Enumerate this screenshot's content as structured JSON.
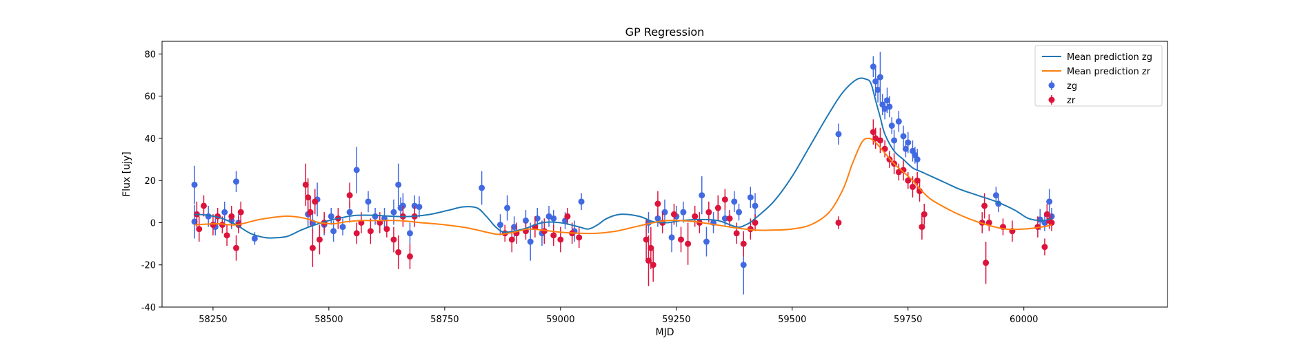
{
  "chart_data": {
    "type": "scatter",
    "title": "GP Regression",
    "xlabel": "MJD",
    "ylabel": "Flux [ujy]",
    "xlim": [
      58140,
      60310
    ],
    "ylim": [
      -40,
      86
    ],
    "xticks": [
      58250,
      58500,
      58750,
      59000,
      59250,
      59500,
      59750,
      60000
    ],
    "yticks": [
      -40,
      -20,
      0,
      20,
      40,
      60,
      80
    ],
    "grid": false,
    "legend_position": "top-right",
    "legend": [
      {
        "label": "Mean prediction zg",
        "kind": "line",
        "color": "#1f77b4"
      },
      {
        "label": "Mean prediction zr",
        "kind": "line",
        "color": "#ff7f0e"
      },
      {
        "label": "zg",
        "kind": "errorbar",
        "color": "#4169e1"
      },
      {
        "label": "zr",
        "kind": "errorbar",
        "color": "#dc143c"
      }
    ],
    "series": [
      {
        "name": "Mean prediction zg",
        "kind": "line",
        "color": "#1f77b4",
        "x": [
          58210,
          58240,
          58270,
          58300,
          58330,
          58360,
          58380,
          58410,
          58440,
          58470,
          58500,
          58530,
          58560,
          58600,
          58640,
          58680,
          58720,
          58760,
          58790,
          58820,
          58840,
          58860,
          58880,
          58920,
          58960,
          59000,
          59040,
          59060,
          59080,
          59100,
          59130,
          59170,
          59200,
          59230,
          59260,
          59300,
          59340,
          59380,
          59400,
          59420,
          59460,
          59500,
          59540,
          59580,
          59610,
          59640,
          59660,
          59670,
          59680,
          59690,
          59700,
          59720,
          59740,
          59760,
          59780,
          59800,
          59830,
          59860,
          59900,
          59940,
          59980,
          60010,
          60040,
          60060
        ],
        "y": [
          4,
          3.5,
          2,
          -1,
          -5,
          -7,
          -7.2,
          -6.5,
          -3.5,
          -1,
          1,
          2.5,
          3.5,
          3.5,
          3,
          3,
          4,
          6,
          7.5,
          7,
          3,
          -2,
          -4.5,
          -3,
          0,
          0,
          -2,
          -3,
          -1,
          2,
          4,
          3,
          0.5,
          0,
          1,
          1.5,
          1,
          -2,
          -1,
          2,
          10,
          22,
          37,
          52,
          62,
          68,
          68,
          66,
          58,
          50,
          42,
          34,
          30,
          26,
          24,
          22,
          19,
          16,
          13,
          10,
          6,
          2,
          1,
          2
        ]
      },
      {
        "name": "Mean prediction zr",
        "kind": "line",
        "color": "#ff7f0e",
        "x": [
          58210,
          58260,
          58300,
          58350,
          58400,
          58420,
          58450,
          58480,
          58510,
          58540,
          58570,
          58600,
          58650,
          58700,
          58750,
          58800,
          58850,
          58870,
          58900,
          58930,
          58960,
          59000,
          59040,
          59080,
          59120,
          59160,
          59200,
          59230,
          59260,
          59290,
          59320,
          59350,
          59380,
          59420,
          59460,
          59500,
          59540,
          59580,
          59610,
          59630,
          59650,
          59665,
          59680,
          59700,
          59720,
          59740,
          59760,
          59780,
          59800,
          59840,
          59880,
          59920,
          59960,
          60000,
          60040,
          60060
        ],
        "y": [
          -1,
          -0.5,
          -1,
          1.5,
          3,
          3,
          2,
          0,
          -0.5,
          0.5,
          1,
          1,
          1,
          0,
          -1,
          -2.5,
          -5,
          -5.5,
          -4.5,
          -3,
          -3.5,
          -4.5,
          -5,
          -5,
          -4,
          -2,
          0,
          1,
          1,
          0.5,
          -0.5,
          -1.5,
          -2.5,
          -3.5,
          -3.5,
          -3,
          -1,
          5,
          16,
          28,
          38,
          40,
          38,
          33,
          28,
          24,
          20,
          15,
          11,
          6,
          2,
          -1,
          -3,
          -3,
          -2,
          -1
        ]
      },
      {
        "name": "zg",
        "kind": "errorbar",
        "color": "#4169e1",
        "points": [
          [
            58210,
            18,
            9
          ],
          [
            58210,
            0.5,
            8
          ],
          [
            58240,
            3,
            5
          ],
          [
            58255,
            -2,
            4
          ],
          [
            58275,
            5,
            5
          ],
          [
            58290,
            1,
            4
          ],
          [
            58300,
            19.5,
            5
          ],
          [
            58305,
            0,
            4
          ],
          [
            58340,
            -7.5,
            3
          ],
          [
            58455,
            4,
            6
          ],
          [
            58465,
            0,
            5
          ],
          [
            58475,
            11,
            8
          ],
          [
            58490,
            -1,
            5
          ],
          [
            58505,
            3,
            4
          ],
          [
            58510,
            -4,
            5
          ],
          [
            58530,
            -2,
            4
          ],
          [
            58545,
            5,
            5
          ],
          [
            58560,
            25,
            11
          ],
          [
            58585,
            10,
            5
          ],
          [
            58600,
            3,
            4
          ],
          [
            58620,
            2,
            5
          ],
          [
            58640,
            5,
            6
          ],
          [
            58650,
            18,
            10
          ],
          [
            58655,
            7,
            5
          ],
          [
            58660,
            8,
            6
          ],
          [
            58675,
            -5,
            5
          ],
          [
            58685,
            8,
            5
          ],
          [
            58695,
            7.5,
            5
          ],
          [
            58830,
            16.5,
            8
          ],
          [
            58870,
            -1,
            5
          ],
          [
            58885,
            7,
            6
          ],
          [
            58900,
            -2,
            5
          ],
          [
            58925,
            1,
            5
          ],
          [
            58935,
            -9,
            9
          ],
          [
            58950,
            2,
            5
          ],
          [
            58960,
            -5,
            6
          ],
          [
            58975,
            3,
            5
          ],
          [
            58985,
            2,
            4
          ],
          [
            59010,
            1,
            4
          ],
          [
            59030,
            -4,
            5
          ],
          [
            59045,
            10,
            4
          ],
          [
            59190,
            0,
            5
          ],
          [
            59210,
            2,
            4
          ],
          [
            59225,
            5,
            6
          ],
          [
            59240,
            -7,
            7
          ],
          [
            59250,
            3,
            5
          ],
          [
            59265,
            5,
            5
          ],
          [
            59305,
            13,
            9
          ],
          [
            59315,
            -9,
            7
          ],
          [
            59330,
            0,
            5
          ],
          [
            59355,
            2,
            4
          ],
          [
            59375,
            10,
            5
          ],
          [
            59385,
            5,
            4
          ],
          [
            59395,
            -20,
            14
          ],
          [
            59410,
            12,
            5
          ],
          [
            59420,
            8,
            6
          ],
          [
            59600,
            42,
            5
          ],
          [
            59675,
            74,
            5
          ],
          [
            59680,
            67,
            7
          ],
          [
            59685,
            63,
            6
          ],
          [
            59690,
            69,
            12
          ],
          [
            59695,
            56,
            5
          ],
          [
            59700,
            54,
            5
          ],
          [
            59705,
            58,
            6
          ],
          [
            59710,
            55,
            5
          ],
          [
            59715,
            46,
            4
          ],
          [
            59720,
            39,
            5
          ],
          [
            59730,
            48,
            5
          ],
          [
            59740,
            41,
            5
          ],
          [
            59745,
            35,
            4
          ],
          [
            59750,
            38,
            5
          ],
          [
            59760,
            34,
            5
          ],
          [
            59765,
            32,
            4
          ],
          [
            59770,
            30,
            5
          ],
          [
            59940,
            13,
            4
          ],
          [
            59945,
            9,
            4
          ],
          [
            60035,
            1.5,
            5
          ],
          [
            60045,
            0,
            4
          ],
          [
            60055,
            10,
            6
          ],
          [
            60060,
            3,
            4
          ]
        ]
      },
      {
        "name": "zr",
        "kind": "errorbar",
        "color": "#dc143c",
        "points": [
          [
            58215,
            4,
            6
          ],
          [
            58220,
            -3,
            6
          ],
          [
            58230,
            8,
            5
          ],
          [
            58250,
            -1,
            5
          ],
          [
            58260,
            3,
            4
          ],
          [
            58270,
            -1,
            4
          ],
          [
            58280,
            -6,
            5
          ],
          [
            58290,
            3,
            5
          ],
          [
            58300,
            -12,
            6
          ],
          [
            58305,
            -1,
            4
          ],
          [
            58310,
            5,
            5
          ],
          [
            58450,
            18,
            10
          ],
          [
            58455,
            12,
            9
          ],
          [
            58460,
            5,
            7
          ],
          [
            58465,
            -12,
            9
          ],
          [
            58470,
            10,
            6
          ],
          [
            58480,
            -8,
            7
          ],
          [
            58490,
            0,
            5
          ],
          [
            58520,
            2,
            5
          ],
          [
            58545,
            13,
            6
          ],
          [
            58560,
            -5,
            5
          ],
          [
            58570,
            0,
            5
          ],
          [
            58590,
            -4,
            6
          ],
          [
            58610,
            0,
            5
          ],
          [
            58625,
            -3,
            4
          ],
          [
            58640,
            -8,
            6
          ],
          [
            58650,
            -14,
            8
          ],
          [
            58660,
            3,
            5
          ],
          [
            58675,
            -16,
            6
          ],
          [
            58685,
            3,
            5
          ],
          [
            58880,
            -5,
            4
          ],
          [
            58895,
            -8,
            6
          ],
          [
            58905,
            -5,
            5
          ],
          [
            58925,
            -4,
            4
          ],
          [
            58945,
            -2,
            5
          ],
          [
            58965,
            -4,
            6
          ],
          [
            58985,
            -6,
            5
          ],
          [
            59000,
            -8,
            6
          ],
          [
            59015,
            3,
            4
          ],
          [
            59025,
            -5,
            5
          ],
          [
            59040,
            -7,
            5
          ],
          [
            59185,
            -8,
            10
          ],
          [
            59190,
            -18,
            12
          ],
          [
            59195,
            -12,
            10
          ],
          [
            59200,
            -20,
            8
          ],
          [
            59210,
            9,
            6
          ],
          [
            59220,
            0,
            5
          ],
          [
            59245,
            4,
            5
          ],
          [
            59260,
            -8,
            6
          ],
          [
            59275,
            -10,
            10
          ],
          [
            59290,
            3,
            5
          ],
          [
            59300,
            0,
            5
          ],
          [
            59320,
            5,
            5
          ],
          [
            59340,
            7,
            6
          ],
          [
            59355,
            11,
            5
          ],
          [
            59365,
            2,
            4
          ],
          [
            59380,
            -5,
            5
          ],
          [
            59395,
            -10,
            6
          ],
          [
            59410,
            -3,
            5
          ],
          [
            59420,
            0,
            4
          ],
          [
            59600,
            0,
            3
          ],
          [
            59675,
            43,
            6
          ],
          [
            59680,
            40,
            5
          ],
          [
            59690,
            39,
            6
          ],
          [
            59700,
            35,
            4
          ],
          [
            59710,
            30,
            4
          ],
          [
            59720,
            28,
            5
          ],
          [
            59730,
            24,
            4
          ],
          [
            59740,
            25,
            5
          ],
          [
            59750,
            20,
            4
          ],
          [
            59760,
            17,
            5
          ],
          [
            59770,
            20,
            4
          ],
          [
            59775,
            15,
            5
          ],
          [
            59780,
            -2,
            6
          ],
          [
            59785,
            4,
            5
          ],
          [
            59910,
            0,
            5
          ],
          [
            59915,
            8,
            6
          ],
          [
            59918,
            -19,
            10
          ],
          [
            59925,
            0,
            4
          ],
          [
            59955,
            -2,
            4
          ],
          [
            59975,
            -4,
            5
          ],
          [
            60030,
            -2,
            5
          ],
          [
            60045,
            -11.5,
            4
          ],
          [
            60050,
            4,
            5
          ],
          [
            60055,
            1,
            4
          ],
          [
            60060,
            0,
            4
          ]
        ]
      }
    ]
  }
}
